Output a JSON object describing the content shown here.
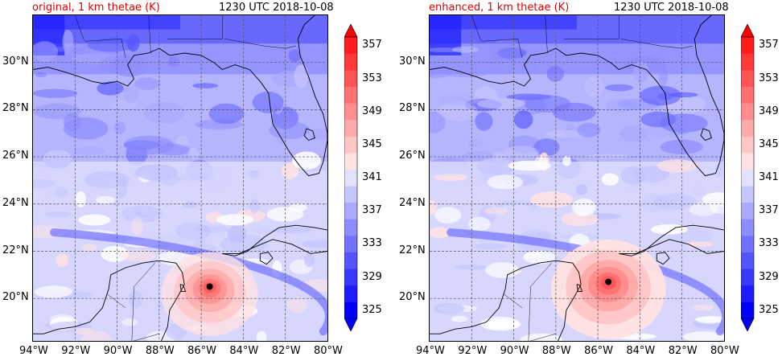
{
  "panels": [
    {
      "id": "original",
      "left_title": "original, 1 km thetae (K)",
      "right_title": "1230 UTC 2018-10-08",
      "storm_center": {
        "lon": -85.6,
        "lat": 20.5
      },
      "storm_intensity": 0.6
    },
    {
      "id": "enhanced",
      "left_title": "enhanced, 1 km thetae (K)",
      "right_title": "1230 UTC 2018-10-08",
      "storm_center": {
        "lon": -85.5,
        "lat": 20.7
      },
      "storm_intensity": 1.0
    }
  ],
  "map_extent": {
    "lon_min": -94,
    "lon_max": -80,
    "lat_min": 18.2,
    "lat_max": 32
  },
  "x_ticks": [
    {
      "value": -94,
      "label": "94°W"
    },
    {
      "value": -92,
      "label": "92°W"
    },
    {
      "value": -90,
      "label": "90°W"
    },
    {
      "value": -88,
      "label": "88°W"
    },
    {
      "value": -86,
      "label": "86°W"
    },
    {
      "value": -84,
      "label": "84°W"
    },
    {
      "value": -82,
      "label": "82°W"
    },
    {
      "value": -80,
      "label": "80°W"
    }
  ],
  "y_ticks": [
    {
      "value": 30,
      "label": "30°N"
    },
    {
      "value": 28,
      "label": "28°N"
    },
    {
      "value": 26,
      "label": "26°N"
    },
    {
      "value": 24,
      "label": "24°N"
    },
    {
      "value": 22,
      "label": "22°N"
    },
    {
      "value": 20,
      "label": "20°N"
    }
  ],
  "colorbar": {
    "min": 325,
    "max": 357,
    "step": 2,
    "tick_labels": [
      "357",
      "353",
      "349",
      "345",
      "341",
      "337",
      "333",
      "329",
      "325"
    ],
    "tick_values": [
      357,
      353,
      349,
      345,
      341,
      337,
      333,
      329,
      325
    ],
    "colors_low_to_high": [
      "#0000ff",
      "#1c1cff",
      "#3838ff",
      "#5555ff",
      "#7171ff",
      "#8d8dff",
      "#aaaaff",
      "#c6c6ff",
      "#e2e2ff",
      "#ffe2e2",
      "#ffc6c6",
      "#ffaaaa",
      "#ff8d8d",
      "#ff7171",
      "#ff5555",
      "#ff3838",
      "#ff1c1c"
    ],
    "extend_low_color": "#0000ff",
    "extend_high_color": "#ff0000"
  },
  "colors": {
    "background_field": "#b4b4ff",
    "coastline": "#000000",
    "gridline": "#555555",
    "storm_dot": "#000000"
  }
}
